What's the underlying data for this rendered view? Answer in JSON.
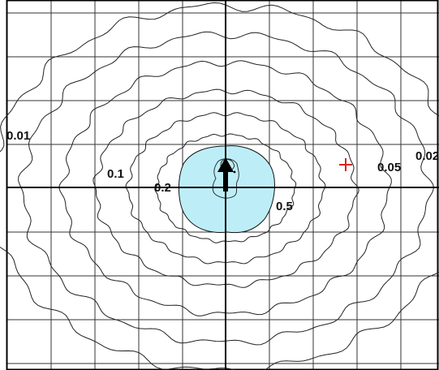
{
  "colors": {
    "background": "#ffffff",
    "grid": "#333333",
    "contour": "#222222",
    "core_fill": "#bdeef7",
    "marker": "#e02020",
    "arrow": "#000000"
  },
  "contours": [
    {
      "label": "0.01"
    },
    {
      "label": "0.02"
    },
    {
      "label": "0.05"
    },
    {
      "label": "0.1"
    },
    {
      "label": "0.2"
    },
    {
      "label": "0.5"
    }
  ],
  "core_region": {
    "fill": "light-blue"
  },
  "source_marker": {
    "icon": "up-arrow-icon"
  },
  "point_marker": {
    "icon": "red-cross-icon"
  }
}
